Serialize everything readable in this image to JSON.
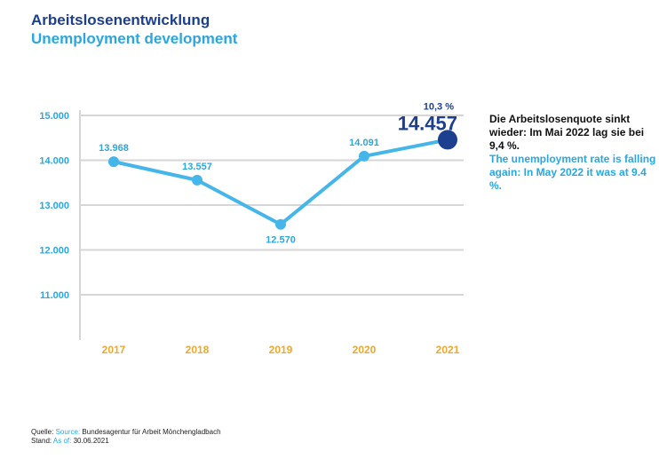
{
  "header": {
    "title_de": "Arbeitslosenentwicklung",
    "title_en": "Unemployment development"
  },
  "chart_data": {
    "type": "line",
    "categories": [
      "2017",
      "2018",
      "2019",
      "2020",
      "2021"
    ],
    "values": [
      13968,
      13557,
      12570,
      14091,
      14457
    ],
    "value_labels": [
      "13.968",
      "13.557",
      "12.570",
      "14.091",
      "14.457"
    ],
    "highlight": {
      "index": 4,
      "percent_label": "10,3 %"
    },
    "y_ticks": [
      15000,
      14000,
      13000,
      12000,
      11000
    ],
    "y_tick_labels": [
      "15.000",
      "14.000",
      "13.000",
      "12.000",
      "11.000"
    ],
    "ylim": [
      10000,
      15000
    ],
    "grid": true,
    "colors": {
      "line": "#45b6ea",
      "highlight": "#1d3f8f",
      "x_labels": "#f0a830",
      "y_labels": "#2aa7e0",
      "grid": "#d6d6d6"
    }
  },
  "annotation": {
    "de": "Die Arbeitslosenquote sinkt wieder: Im Mai 2022 lag sie bei 9,4 %.",
    "en": "The unemployment rate is falling again: In May 2022 it was at 9.4 %."
  },
  "footer": {
    "source_label_de": "Quelle:",
    "source_label_en": "Source:",
    "source_value": "Bundesagentur für Arbeit Mönchengladbach",
    "asof_label_de": "Stand:",
    "asof_label_en": "As of:",
    "asof_value": "30.06.2021"
  }
}
